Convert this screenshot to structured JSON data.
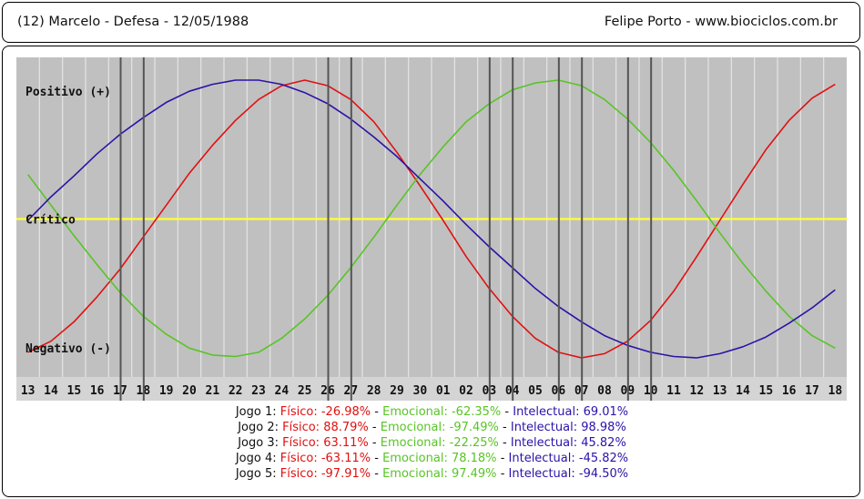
{
  "header": {
    "left": "(12)  Marcelo - Defesa -  12/05/1988",
    "right": "Felipe Porto   -   www.biociclos.com.br"
  },
  "chart_data": {
    "type": "line",
    "x": [
      "13",
      "14",
      "15",
      "16",
      "17",
      "18",
      "19",
      "20",
      "21",
      "22",
      "23",
      "24",
      "25",
      "26",
      "27",
      "28",
      "29",
      "30",
      "01",
      "02",
      "03",
      "04",
      "05",
      "06",
      "07",
      "08",
      "09",
      "10",
      "11",
      "12",
      "13",
      "14",
      "15",
      "16",
      "17",
      "18"
    ],
    "ylim": [
      -100,
      100
    ],
    "grid": true,
    "labels": {
      "positive": "Positivo (+)",
      "critical": "Crítico",
      "negative": "Negativo (-)"
    },
    "series": [
      {
        "name": "Físico",
        "color": "#e01010",
        "values": [
          -96,
          -88,
          -74,
          -56,
          -36,
          -13,
          10,
          33,
          53,
          71,
          86,
          96,
          100,
          96,
          86,
          70,
          48,
          24,
          -1,
          -27,
          -50,
          -70,
          -86,
          -96,
          -100,
          -97,
          -88,
          -73,
          -52,
          -27,
          -1,
          25,
          50,
          71,
          87,
          97
        ]
      },
      {
        "name": "Emocional",
        "color": "#58c426",
        "values": [
          32,
          10,
          -12,
          -33,
          -53,
          -70,
          -83,
          -93,
          -98,
          -99,
          -96,
          -86,
          -72,
          -55,
          -35,
          -13,
          10,
          32,
          52,
          70,
          83,
          93,
          98,
          100,
          96,
          86,
          72,
          55,
          35,
          13,
          -10,
          -32,
          -52,
          -70,
          -84,
          -93
        ]
      },
      {
        "name": "Intelectual",
        "color": "#2b12a8",
        "values": [
          -1,
          16,
          31,
          47,
          61,
          73,
          84,
          92,
          97,
          100,
          100,
          97,
          91,
          83,
          72,
          59,
          45,
          29,
          13,
          -4,
          -20,
          -35,
          -50,
          -63,
          -74,
          -84,
          -91,
          -96,
          -99,
          -100,
          -97,
          -92,
          -85,
          -75,
          -64,
          -51
        ]
      }
    ],
    "game_lines_after_index": [
      4,
      5,
      13,
      14,
      20,
      21,
      23,
      24,
      26,
      27
    ],
    "game_lines_offsets": [
      0.52,
      0.52,
      0.52,
      0.52,
      0.52,
      0.52,
      0.52,
      0.52,
      0.52,
      0.52
    ]
  },
  "games": [
    {
      "label": "Jogo 1:",
      "fisico": "Físico: -26.98%",
      "emocional": "Emocional: -62.35%",
      "intelectual": "Intelectual: 69.01%"
    },
    {
      "label": "Jogo 2:",
      "fisico": "Físico: 88.79%",
      "emocional": "Emocional: -97.49%",
      "intelectual": "Intelectual: 98.98%"
    },
    {
      "label": "Jogo 3:",
      "fisico": "Físico: 63.11%",
      "emocional": "Emocional: -22.25%",
      "intelectual": "Intelectual: 45.82%"
    },
    {
      "label": "Jogo 4:",
      "fisico": "Físico: -63.11%",
      "emocional": "Emocional: 78.18%",
      "intelectual": "Intelectual: -45.82%"
    },
    {
      "label": "Jogo 5:",
      "fisico": "Físico: -97.91%",
      "emocional": "Emocional: 97.49%",
      "intelectual": "Intelectual: -94.50%"
    }
  ],
  "colors": {
    "plot_bg": "#c0c0c0",
    "grid": "#e4e4e4",
    "critical_line": "#ffff33",
    "game_line": "#555555"
  }
}
